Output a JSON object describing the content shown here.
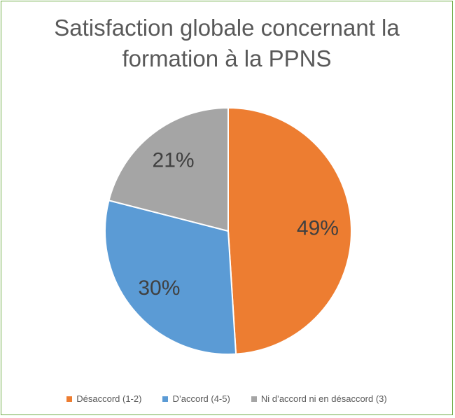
{
  "chart_data": {
    "type": "pie",
    "title_line1": "Satisfaction globale concernant la",
    "title_line2": "formation à la PPNS",
    "categories": [
      "Désaccord (1-2)",
      "D’accord (4-5)",
      "Ni d’accord ni en désaccord (3)"
    ],
    "values": [
      49,
      30,
      21
    ],
    "data_labels": [
      "49%",
      "30%",
      "21%"
    ],
    "colors": [
      "#ed7d31",
      "#5b9bd5",
      "#a5a5a5"
    ],
    "start_angle": "12-o-clock",
    "direction": "clockwise",
    "legend_position": "bottom"
  }
}
